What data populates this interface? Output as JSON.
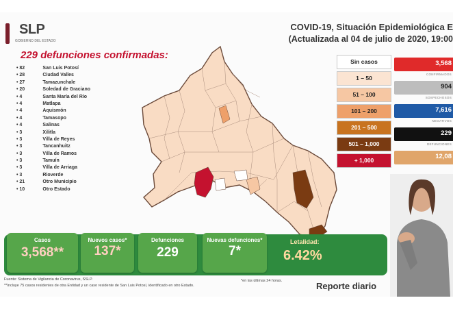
{
  "logo": {
    "text": "SLP",
    "subtitle": "GOBIERNO DEL ESTADO"
  },
  "header": {
    "title_line1": "COVID-19, Situación Epidemiológica E",
    "title_line2": "(Actualizada al 04 de julio de 2020, 19:00"
  },
  "deaths_heading": "229 defunciones confirmadas:",
  "municipalities": [
    {
      "count": "82",
      "name": "San Luis Potosí"
    },
    {
      "count": "28",
      "name": "Ciudad Valles"
    },
    {
      "count": "27",
      "name": "Tamazunchale"
    },
    {
      "count": "20",
      "name": "Soledad de Graciano"
    },
    {
      "count": "4",
      "name": "Santa María del Río"
    },
    {
      "count": "4",
      "name": "Matlapa"
    },
    {
      "count": "4",
      "name": "Aquismón"
    },
    {
      "count": "4",
      "name": "Tamasopo"
    },
    {
      "count": "4",
      "name": "Salinas"
    },
    {
      "count": "3",
      "name": "Xilitla"
    },
    {
      "count": "3",
      "name": "Villa de Reyes"
    },
    {
      "count": "3",
      "name": "Tancanhuitz"
    },
    {
      "count": "3",
      "name": "Villa de Ramos"
    },
    {
      "count": "3",
      "name": "Tamuín"
    },
    {
      "count": "3",
      "name": "Villa de Arriaga"
    },
    {
      "count": "3",
      "name": "Rioverde"
    },
    {
      "count": "21",
      "name": "Otro Municipio"
    },
    {
      "count": "10",
      "name": "Otro Estado"
    }
  ],
  "legend": [
    {
      "label": "Sin casos",
      "color": "#ffffff",
      "text": "#222222"
    },
    {
      "label": "1 – 50",
      "color": "#fbe4d2",
      "text": "#222222"
    },
    {
      "label": "51 – 100",
      "color": "#f6c7a3",
      "text": "#222222"
    },
    {
      "label": "101 – 200",
      "color": "#eea06a",
      "text": "#222222"
    },
    {
      "label": "201 – 500",
      "color": "#c8731f",
      "text": "#ffffff"
    },
    {
      "label": "501 – 1,000",
      "color": "#7a3b12",
      "text": "#ffffff"
    },
    {
      "label": "+ 1,000",
      "color": "#c4122f",
      "text": "#ffffff"
    }
  ],
  "stats": [
    {
      "value": "3,568",
      "label": "CONFIRMADOS",
      "color": "#e02a2a",
      "text": "#ffffff"
    },
    {
      "value": "904",
      "label": "SOSPECHOSOS",
      "color": "#bdbdbd",
      "text": "#222222"
    },
    {
      "value": "7,616",
      "label": "NEGATIVOS",
      "color": "#1f5aa6",
      "text": "#ffffff"
    },
    {
      "value": "229",
      "label": "DEFUNCIONES",
      "color": "#111111",
      "text": "#ffffff"
    },
    {
      "value": "12,08",
      "label": "",
      "color": "#e0a56a",
      "text": "#ffffff"
    }
  ],
  "summary": {
    "casos_label": "Casos",
    "casos_value": "3,568**",
    "nuevos_casos_label": "Nuevos casos*",
    "nuevos_casos_value": "137*",
    "defunciones_label": "Defunciones",
    "defunciones_value": "229",
    "nuevas_defunciones_label": "Nuevas defunciones*",
    "nuevas_defunciones_value": "7*",
    "letalidad_label": "Letalidad:",
    "letalidad_value": "6.42%"
  },
  "footer": {
    "source": "Fuente: Sistema de Vigilancia de Coronavirus, SSLP.",
    "note": "**Incluye 75 casos residentes de otra Entidad y un caso residente de San Luis Potosí, identificado en otro Estado.",
    "last24": "*en las últimas 24 horas.",
    "report": "Reporte diario"
  },
  "colors": {
    "accent_red": "#c4122f",
    "green_bar": "#2e8b3e",
    "green_box": "#56a64a"
  }
}
